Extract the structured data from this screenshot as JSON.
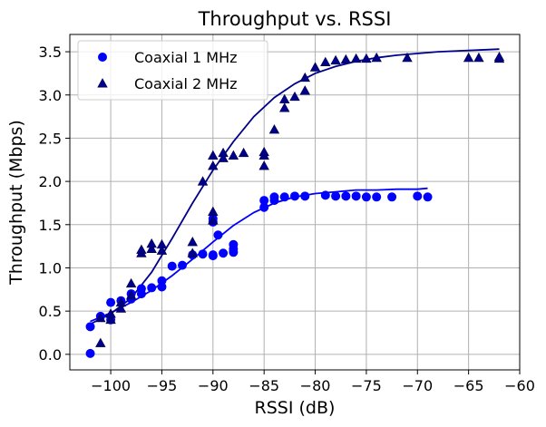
{
  "chart_data": {
    "type": "scatter",
    "title": "Throughput vs. RSSI",
    "xlabel": "RSSI (dB)",
    "ylabel": "Throughput (Mbps)",
    "xlim": [
      -104,
      -60
    ],
    "ylim": [
      -0.18,
      3.7
    ],
    "xticks": [
      -100,
      -95,
      -90,
      -85,
      -80,
      -75,
      -70,
      -65,
      -60
    ],
    "yticks": [
      0.0,
      0.5,
      1.0,
      1.5,
      2.0,
      2.5,
      3.0,
      3.5
    ],
    "xtick_labels": [
      "−100",
      "−95",
      "−90",
      "−85",
      "−80",
      "−75",
      "−70",
      "−65",
      "−60"
    ],
    "ytick_labels": [
      "0.0",
      "0.5",
      "1.0",
      "1.5",
      "2.0",
      "2.5",
      "3.0",
      "3.5"
    ],
    "grid": true,
    "legend_position": "top-left",
    "series": [
      {
        "name": "Coaxial 1 MHz",
        "marker": "circle",
        "color": "#0000ff",
        "points": [
          [
            -102,
            0.32
          ],
          [
            -102,
            0.01
          ],
          [
            -101,
            0.44
          ],
          [
            -100,
            0.6
          ],
          [
            -100,
            0.4
          ],
          [
            -99,
            0.62
          ],
          [
            -98,
            0.64
          ],
          [
            -98,
            0.7
          ],
          [
            -97,
            0.7
          ],
          [
            -97,
            0.76
          ],
          [
            -96,
            0.77
          ],
          [
            -95,
            0.78
          ],
          [
            -95,
            0.85
          ],
          [
            -94,
            1.02
          ],
          [
            -93,
            1.03
          ],
          [
            -92,
            1.15
          ],
          [
            -91,
            1.16
          ],
          [
            -90,
            1.15
          ],
          [
            -90,
            1.14
          ],
          [
            -90,
            1.53
          ],
          [
            -90,
            1.57
          ],
          [
            -89.5,
            1.38
          ],
          [
            -89,
            1.17
          ],
          [
            -88,
            1.18
          ],
          [
            -88,
            1.22
          ],
          [
            -88,
            1.27
          ],
          [
            -85,
            1.7
          ],
          [
            -85,
            1.78
          ],
          [
            -84,
            1.78
          ],
          [
            -84,
            1.82
          ],
          [
            -83,
            1.82
          ],
          [
            -82,
            1.83
          ],
          [
            -81,
            1.83
          ],
          [
            -79,
            1.84
          ],
          [
            -78,
            1.83
          ],
          [
            -77,
            1.83
          ],
          [
            -76,
            1.83
          ],
          [
            -75,
            1.82
          ],
          [
            -74,
            1.82
          ],
          [
            -72.5,
            1.82
          ],
          [
            -70,
            1.83
          ],
          [
            -69,
            1.82
          ]
        ],
        "fit": {
          "x": [
            -102,
            -100,
            -98,
            -96,
            -94,
            -92,
            -90,
            -88,
            -86,
            -84,
            -82,
            -80,
            -78,
            -76,
            -74,
            -72,
            -70,
            -69
          ],
          "y": [
            0.38,
            0.48,
            0.6,
            0.74,
            0.91,
            1.1,
            1.3,
            1.49,
            1.64,
            1.75,
            1.82,
            1.86,
            1.88,
            1.9,
            1.9,
            1.91,
            1.91,
            1.92
          ]
        }
      },
      {
        "name": "Coaxial 2 MHz",
        "marker": "triangle",
        "color": "#00008b",
        "points": [
          [
            -101,
            0.13
          ],
          [
            -101,
            0.42
          ],
          [
            -100,
            0.4
          ],
          [
            -100,
            0.47
          ],
          [
            -99,
            0.53
          ],
          [
            -99,
            0.6
          ],
          [
            -98,
            0.68
          ],
          [
            -98,
            0.82
          ],
          [
            -97,
            1.17
          ],
          [
            -97,
            1.21
          ],
          [
            -96,
            1.22
          ],
          [
            -96,
            1.28
          ],
          [
            -95,
            1.2
          ],
          [
            -95,
            1.27
          ],
          [
            -92,
            1.17
          ],
          [
            -92,
            1.3
          ],
          [
            -91,
            2.0
          ],
          [
            -90,
            2.18
          ],
          [
            -90,
            2.3
          ],
          [
            -90,
            1.55
          ],
          [
            -90,
            1.65
          ],
          [
            -89,
            2.27
          ],
          [
            -89,
            2.33
          ],
          [
            -88,
            2.3
          ],
          [
            -87,
            2.33
          ],
          [
            -85,
            2.18
          ],
          [
            -85,
            2.3
          ],
          [
            -85,
            2.34
          ],
          [
            -84,
            2.6
          ],
          [
            -83,
            2.85
          ],
          [
            -83,
            2.95
          ],
          [
            -82,
            2.98
          ],
          [
            -81,
            3.05
          ],
          [
            -81,
            3.2
          ],
          [
            -80,
            3.32
          ],
          [
            -79,
            3.38
          ],
          [
            -78,
            3.4
          ],
          [
            -77,
            3.41
          ],
          [
            -76,
            3.42
          ],
          [
            -75,
            3.42
          ],
          [
            -74,
            3.43
          ],
          [
            -71,
            3.43
          ],
          [
            -65,
            3.43
          ],
          [
            -64,
            3.43
          ],
          [
            -62,
            3.42
          ],
          [
            -62,
            3.44
          ]
        ],
        "fit": {
          "x": [
            -102,
            -100,
            -98,
            -96,
            -94,
            -92,
            -90,
            -88,
            -86,
            -84,
            -82,
            -80,
            -78,
            -76,
            -74,
            -72,
            -70,
            -68,
            -66,
            -64,
            -62
          ],
          "y": [
            0.35,
            0.47,
            0.65,
            0.95,
            1.34,
            1.75,
            2.13,
            2.46,
            2.75,
            2.97,
            3.13,
            3.25,
            3.33,
            3.39,
            3.43,
            3.46,
            3.48,
            3.5,
            3.51,
            3.52,
            3.53
          ]
        }
      }
    ]
  }
}
